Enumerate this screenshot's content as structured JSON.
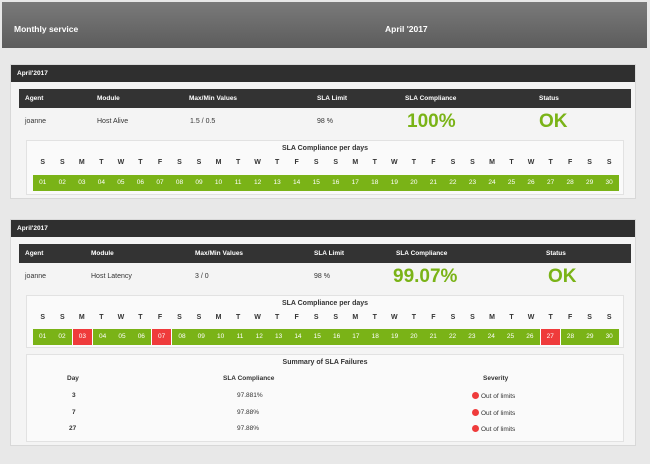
{
  "header": {
    "title": "Monthly service",
    "period": "April '2017"
  },
  "columns": [
    "Agent",
    "Module",
    "Max/Min Values",
    "SLA Limit",
    "SLA Compliance",
    "Status"
  ],
  "days_title": "SLA Compliance per days",
  "dow": [
    "S",
    "S",
    "M",
    "T",
    "W",
    "T",
    "F",
    "S",
    "S",
    "M",
    "T",
    "W",
    "T",
    "F",
    "S",
    "S",
    "M",
    "T",
    "W",
    "T",
    "F",
    "S",
    "S",
    "M",
    "T",
    "W",
    "T",
    "F",
    "S",
    "S"
  ],
  "panels": [
    {
      "title": "April'2017",
      "agent": "joanne",
      "module": "Host Alive",
      "maxmin": "1.5 / 0.5",
      "sla_limit": "98 %",
      "compliance": "100%",
      "status": "OK",
      "days": [
        "01",
        "02",
        "03",
        "04",
        "05",
        "06",
        "07",
        "08",
        "09",
        "10",
        "11",
        "12",
        "13",
        "14",
        "15",
        "16",
        "17",
        "18",
        "19",
        "20",
        "21",
        "22",
        "23",
        "24",
        "25",
        "26",
        "27",
        "28",
        "29",
        "30"
      ],
      "failed_days": []
    },
    {
      "title": "April'2017",
      "agent": "joanne",
      "module": "Host Latency",
      "maxmin": "3 / 0",
      "sla_limit": "98 %",
      "compliance": "99.07%",
      "status": "OK",
      "days": [
        "01",
        "02",
        "03",
        "04",
        "05",
        "06",
        "07",
        "08",
        "09",
        "10",
        "11",
        "12",
        "13",
        "14",
        "15",
        "16",
        "17",
        "18",
        "19",
        "20",
        "21",
        "22",
        "23",
        "24",
        "25",
        "26",
        "27",
        "28",
        "29",
        "30"
      ],
      "failed_days": [
        "03",
        "07",
        "27"
      ],
      "summary": {
        "title": "Summary of SLA Failures",
        "headers": [
          "Day",
          "SLA Compliance",
          "Severity"
        ],
        "rows": [
          {
            "day": "3",
            "compliance": "97.881%",
            "severity": "Out of limits"
          },
          {
            "day": "7",
            "compliance": "97.88%",
            "severity": "Out of limits"
          },
          {
            "day": "27",
            "compliance": "97.88%",
            "severity": "Out of limits"
          }
        ]
      }
    }
  ],
  "colors": {
    "ok_green": "#7ab317",
    "fail_red": "#ef3b3b",
    "header_dark": "#333333"
  }
}
